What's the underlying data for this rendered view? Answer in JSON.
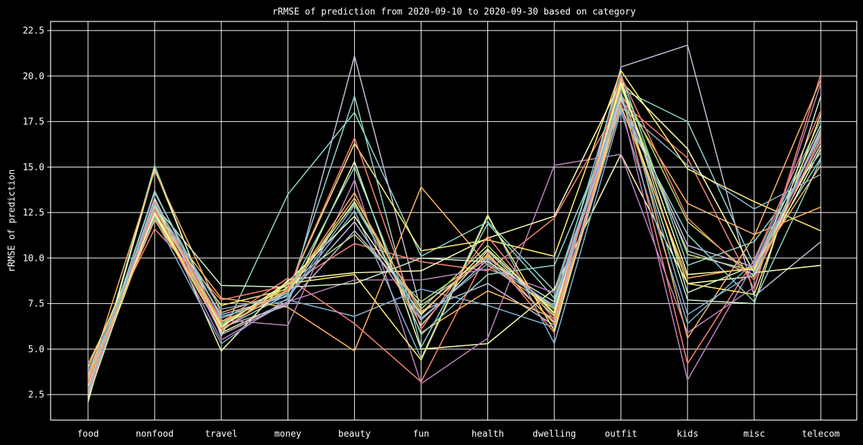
{
  "chart_data": {
    "type": "line",
    "title": "rRMSE of prediction from 2020-09-10 to 2020-09-30 based on category",
    "xlabel": "",
    "ylabel": "rRMSE of prediction",
    "categories": [
      "food",
      "nonfood",
      "travel",
      "money",
      "beauty",
      "fun",
      "health",
      "dwelling",
      "outfit",
      "kids",
      "misc",
      "telecom"
    ],
    "yticks": [
      "2.5",
      "5.0",
      "7.5",
      "10.0",
      "12.5",
      "15.0",
      "17.5",
      "20.0",
      "22.5"
    ],
    "ylim": [
      1.1,
      23.0
    ],
    "grid": true,
    "legend": "none",
    "colors": [
      "#8dd3c7",
      "#feffb3",
      "#bfbbd9",
      "#fa8174",
      "#81b1d2",
      "#fdb462",
      "#b3de69",
      "#bc82bd",
      "#ccebc4",
      "#ffed6f"
    ],
    "series": [
      {
        "values": [
          2.2,
          15.1,
          5.7,
          13.5,
          18.0,
          10.1,
          12.0,
          8.2,
          19.3,
          17.5,
          9.6,
          15.5
        ]
      },
      {
        "values": [
          2.1,
          14.9,
          5.9,
          7.6,
          15.3,
          5.0,
          5.3,
          8.3,
          15.7,
          8.6,
          9.0,
          16.0
        ]
      },
      {
        "values": [
          2.7,
          13.7,
          6.2,
          7.4,
          21.1,
          7.1,
          8.6,
          6.3,
          20.5,
          21.7,
          7.9,
          10.9
        ]
      },
      {
        "values": [
          4.2,
          11.6,
          7.7,
          8.5,
          10.8,
          9.8,
          9.3,
          12.2,
          18.6,
          15.5,
          8.3,
          20.1
        ]
      },
      {
        "values": [
          2.9,
          13.0,
          6.8,
          7.7,
          6.8,
          8.3,
          7.4,
          6.2,
          18.3,
          15.1,
          12.7,
          14.6
        ]
      },
      {
        "values": [
          3.3,
          12.6,
          7.8,
          7.3,
          4.9,
          13.9,
          9.6,
          7.2,
          19.0,
          13.0,
          11.3,
          12.8
        ]
      },
      {
        "values": [
          3.0,
          12.5,
          6.3,
          8.6,
          11.3,
          7.6,
          10.1,
          7.2,
          19.5,
          12.0,
          9.0,
          16.5
        ]
      },
      {
        "values": [
          2.8,
          12.8,
          6.6,
          6.3,
          14.3,
          3.1,
          5.6,
          15.1,
          15.7,
          5.9,
          8.4,
          19.6
        ]
      },
      {
        "values": [
          3.1,
          12.9,
          6.3,
          8.1,
          13.1,
          6.3,
          10.4,
          6.8,
          19.9,
          8.1,
          9.6,
          17.3
        ]
      },
      {
        "values": [
          2.6,
          12.4,
          7.4,
          8.3,
          16.3,
          10.4,
          11.0,
          10.1,
          20.3,
          14.9,
          13.1,
          11.5
        ]
      },
      {
        "values": [
          3.5,
          12.3,
          6.1,
          8.0,
          18.9,
          5.1,
          11.9,
          7.8,
          20.1,
          9.6,
          10.9,
          15.8
        ]
      },
      {
        "values": [
          2.4,
          13.2,
          4.9,
          8.8,
          9.2,
          9.3,
          11.1,
          12.3,
          19.7,
          16.0,
          9.2,
          9.6
        ]
      },
      {
        "values": [
          3.6,
          12.7,
          6.9,
          7.9,
          12.0,
          6.6,
          9.9,
          6.5,
          18.9,
          10.7,
          9.5,
          16.8
        ]
      },
      {
        "values": [
          2.5,
          13.1,
          6.5,
          8.9,
          6.4,
          3.2,
          10.3,
          5.9,
          19.2,
          4.2,
          9.9,
          18.1
        ]
      },
      {
        "values": [
          3.8,
          12.2,
          5.3,
          7.8,
          12.6,
          4.5,
          12.4,
          5.3,
          18.1,
          6.4,
          9.8,
          17.6
        ]
      },
      {
        "values": [
          3.4,
          14.8,
          7.0,
          8.2,
          13.6,
          5.9,
          8.2,
          6.7,
          19.8,
          5.6,
          11.2,
          19.8
        ]
      },
      {
        "values": [
          2.9,
          12.8,
          6.4,
          8.4,
          13.0,
          7.2,
          10.7,
          6.9,
          19.4,
          10.2,
          9.3,
          17.0
        ]
      },
      {
        "values": [
          3.2,
          12.6,
          5.5,
          7.6,
          8.8,
          8.8,
          9.4,
          8.1,
          18.5,
          3.3,
          9.7,
          16.4
        ]
      },
      {
        "values": [
          2.3,
          12.9,
          8.5,
          8.4,
          8.6,
          10.0,
          9.8,
          7.6,
          19.0,
          7.7,
          7.5,
          18.9
        ]
      },
      {
        "values": [
          4.0,
          12.4,
          6.0,
          8.6,
          9.1,
          4.4,
          12.3,
          6.0,
          18.8,
          8.6,
          8.0,
          17.9
        ]
      },
      {
        "values": [
          2.7,
          13.6,
          6.7,
          8.1,
          15.0,
          5.8,
          9.1,
          9.6,
          18.2,
          11.3,
          7.6,
          15.4
        ]
      },
      {
        "values": [
          3.0,
          12.5,
          6.2,
          8.7,
          12.3,
          6.9,
          10.5,
          7.0,
          19.6,
          9.1,
          9.4,
          16.2
        ]
      },
      {
        "values": [
          2.6,
          13.3,
          5.8,
          7.5,
          11.5,
          7.4,
          10.0,
          7.3,
          18.7,
          10.4,
          9.1,
          17.1
        ]
      },
      {
        "values": [
          3.1,
          12.7,
          6.1,
          8.3,
          16.6,
          6.1,
          11.2,
          6.6,
          20.0,
          12.2,
          8.8,
          16.7
        ]
      },
      {
        "values": [
          2.8,
          13.0,
          7.2,
          7.9,
          12.9,
          6.7,
          9.7,
          7.4,
          19.1,
          6.9,
          9.2,
          16.9
        ]
      },
      {
        "values": [
          3.3,
          12.1,
          6.5,
          8.2,
          13.3,
          7.0,
          10.2,
          6.4,
          18.4,
          8.9,
          9.5,
          15.1
        ]
      }
    ]
  }
}
